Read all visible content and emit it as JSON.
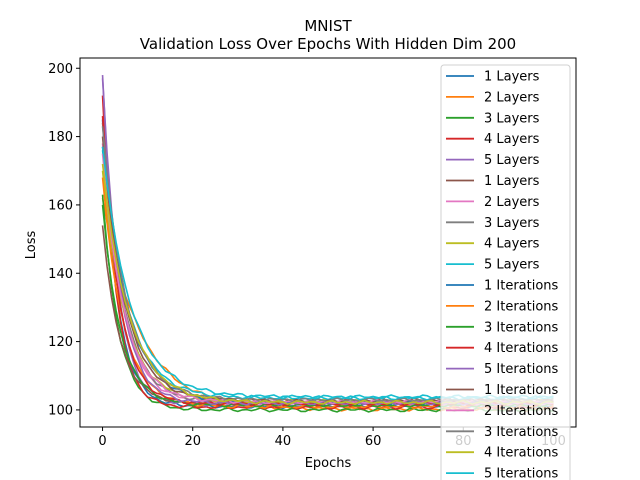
{
  "chart_data": {
    "type": "line",
    "title": "MNIST",
    "subtitle": "Validation Loss Over Epochs With Hidden Dim 200",
    "xlabel": "Epochs",
    "ylabel": "Loss",
    "xlim": [
      -5,
      105
    ],
    "ylim": [
      95,
      203
    ],
    "xticks": [
      0,
      20,
      40,
      60,
      80,
      100
    ],
    "yticks": [
      100,
      120,
      140,
      160,
      180,
      200
    ],
    "grid": false,
    "legend_position": "right",
    "series": [
      {
        "name": "1 Layers",
        "color": "#1f77b4",
        "start": 185,
        "final": 101.0,
        "k": 0.3
      },
      {
        "name": "2 Layers",
        "color": "#ff7f0e",
        "start": 162,
        "final": 100.2,
        "k": 0.12
      },
      {
        "name": "3 Layers",
        "color": "#2ca02c",
        "start": 163,
        "final": 100.0,
        "k": 0.28
      },
      {
        "name": "4 Layers",
        "color": "#d62728",
        "start": 192,
        "final": 100.8,
        "k": 0.33
      },
      {
        "name": "5 Layers",
        "color": "#9467bd",
        "start": 198,
        "final": 101.5,
        "k": 0.3
      },
      {
        "name": "1 Layers",
        "color": "#8c564b",
        "start": 154,
        "final": 101.8,
        "k": 0.26
      },
      {
        "name": "2 Layers",
        "color": "#e377c2",
        "start": 178,
        "final": 102.0,
        "k": 0.22
      },
      {
        "name": "3 Layers",
        "color": "#7f7f7f",
        "start": 184,
        "final": 102.3,
        "k": 0.22
      },
      {
        "name": "4 Layers",
        "color": "#bcbd22",
        "start": 170,
        "final": 102.5,
        "k": 0.2
      },
      {
        "name": "5 Layers",
        "color": "#17becf",
        "start": 176,
        "final": 103.5,
        "k": 0.18
      },
      {
        "name": "1 Iterations",
        "color": "#1f77b4",
        "start": 177,
        "final": 102.2,
        "k": 0.18
      },
      {
        "name": "2 Iterations",
        "color": "#ff7f0e",
        "start": 168,
        "final": 101.0,
        "k": 0.22
      },
      {
        "name": "3 Iterations",
        "color": "#2ca02c",
        "start": 160,
        "final": 101.4,
        "k": 0.25
      },
      {
        "name": "4 Iterations",
        "color": "#d62728",
        "start": 186,
        "final": 101.8,
        "k": 0.27
      },
      {
        "name": "5 Iterations",
        "color": "#9467bd",
        "start": 197,
        "final": 102.0,
        "k": 0.26
      },
      {
        "name": "1 Iterations",
        "color": "#8c564b",
        "start": 180,
        "final": 102.8,
        "k": 0.2
      },
      {
        "name": "2 Iterations",
        "color": "#e377c2",
        "start": 175,
        "final": 102.4,
        "k": 0.21
      },
      {
        "name": "3 Iterations",
        "color": "#7f7f7f",
        "start": 183,
        "final": 102.9,
        "k": 0.19
      },
      {
        "name": "4 Iterations",
        "color": "#bcbd22",
        "start": 172,
        "final": 102.2,
        "k": 0.17
      },
      {
        "name": "5 Iterations",
        "color": "#17becf",
        "start": 177,
        "final": 103.8,
        "k": 0.16
      }
    ],
    "x_max": 100
  }
}
